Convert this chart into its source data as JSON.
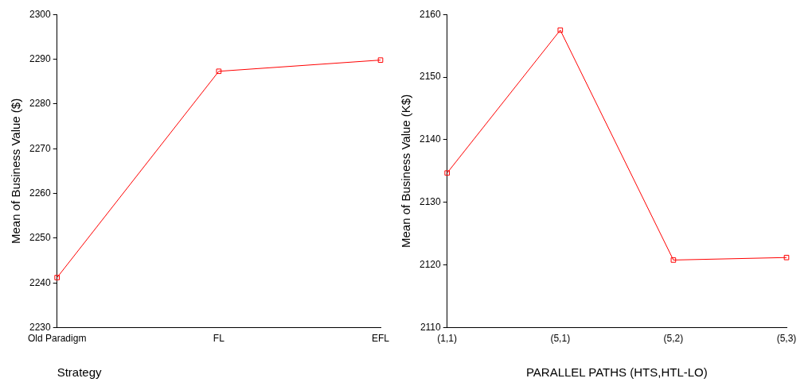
{
  "chart_data": [
    {
      "type": "line",
      "categories": [
        "Old Paradigm",
        "FL",
        "EFL"
      ],
      "xlabel": "Strategy",
      "ylabel": "Mean of Business Value ($)",
      "series": [
        {
          "color": "#ff0000",
          "values": [
            2241.2,
            2287.3,
            2289.8
          ]
        }
      ],
      "ylim": [
        2230,
        2300
      ],
      "yticks": [
        2230,
        2240,
        2250,
        2260,
        2270,
        2280,
        2290,
        2300
      ],
      "grid": false,
      "legend": false,
      "marker": "square",
      "line_style": "solid"
    },
    {
      "type": "line",
      "categories": [
        "(1,1)",
        "(5,1)",
        "(5,2)",
        "(5,3)"
      ],
      "xlabel": "PARALLEL PATHS (HTS,HTL-LO)",
      "ylabel": "Mean of Business Value (K$)",
      "series": [
        {
          "color": "#ff0000",
          "values": [
            2134.7,
            2157.5,
            2120.8,
            2121.2
          ]
        }
      ],
      "ylim": [
        2110,
        2160
      ],
      "yticks": [
        2110,
        2120,
        2130,
        2140,
        2150,
        2160
      ],
      "grid": false,
      "legend": false,
      "marker": "square",
      "line_style": "solid"
    }
  ]
}
